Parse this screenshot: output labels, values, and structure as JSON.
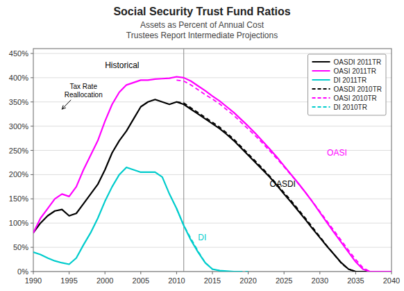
{
  "chart_data": {
    "type": "line",
    "title": "Social Security Trust Fund Ratios",
    "subtitle": [
      "Assets as Percent of Annual Cost",
      "Trustees Report Intermediate Projections"
    ],
    "xlim": [
      1990,
      2040
    ],
    "ylim": [
      0,
      460
    ],
    "xticks": [
      1990,
      1995,
      2000,
      2005,
      2010,
      2015,
      2020,
      2025,
      2030,
      2035,
      2040
    ],
    "yticks": [
      {
        "value": 0,
        "label": "0%"
      },
      {
        "value": 50,
        "label": "50%"
      },
      {
        "value": 100,
        "label": "100%"
      },
      {
        "value": 150,
        "label": "150%"
      },
      {
        "value": 200,
        "label": "200%"
      },
      {
        "value": 250,
        "label": "250%"
      },
      {
        "value": 300,
        "label": "300%"
      },
      {
        "value": 350,
        "label": "350%"
      },
      {
        "value": 400,
        "label": "400%"
      },
      {
        "value": 450,
        "label": "450%"
      }
    ],
    "grid": "y",
    "legend": "upper right",
    "vline_x": 2011,
    "annotations": [
      {
        "text": "Historical",
        "x": 2000,
        "y": 420,
        "color": "#000000"
      },
      {
        "text": "Tax Rate\nReallocation",
        "x": 1997,
        "y": 360,
        "arrow_x": 1994,
        "arrow_y": 335,
        "color": "#000000"
      },
      {
        "text": "OASDI",
        "x": 2023,
        "y": 175,
        "color": "#000000"
      },
      {
        "text": "OASI",
        "x": 2031,
        "y": 240,
        "color": "#FF00FF"
      },
      {
        "text": "DI",
        "x": 2013,
        "y": 65,
        "color": "#00CCCC"
      }
    ],
    "series": [
      {
        "name": "OASDI 2011TR",
        "color": "#000000",
        "line_style": "solid",
        "x": [
          1990,
          1991,
          1992,
          1993,
          1994,
          1995,
          1996,
          1997,
          1998,
          1999,
          2000,
          2001,
          2002,
          2003,
          2004,
          2005,
          2006,
          2007,
          2008,
          2009,
          2010,
          2011,
          2012,
          2013,
          2014,
          2015,
          2016,
          2017,
          2018,
          2019,
          2020,
          2021,
          2022,
          2023,
          2024,
          2025,
          2026,
          2027,
          2028,
          2029,
          2030,
          2031,
          2032,
          2033,
          2034,
          2035,
          2036,
          2037,
          2038,
          2039,
          2040
        ],
        "values": [
          80,
          100,
          115,
          125,
          128,
          115,
          120,
          140,
          160,
          180,
          210,
          245,
          270,
          290,
          315,
          340,
          350,
          355,
          350,
          345,
          350,
          345,
          335,
          325,
          315,
          305,
          295,
          283,
          270,
          255,
          240,
          225,
          210,
          195,
          178,
          160,
          143,
          125,
          107,
          88,
          70,
          52,
          35,
          18,
          5,
          0,
          0,
          0,
          0,
          0,
          0
        ]
      },
      {
        "name": "OASI 2011TR",
        "color": "#FF00FF",
        "line_style": "solid",
        "x": [
          1990,
          1991,
          1992,
          1993,
          1994,
          1995,
          1996,
          1997,
          1998,
          1999,
          2000,
          2001,
          2002,
          2003,
          2004,
          2005,
          2006,
          2007,
          2008,
          2009,
          2010,
          2011,
          2012,
          2013,
          2014,
          2015,
          2016,
          2017,
          2018,
          2019,
          2020,
          2021,
          2022,
          2023,
          2024,
          2025,
          2026,
          2027,
          2028,
          2029,
          2030,
          2031,
          2032,
          2033,
          2034,
          2035,
          2036,
          2037,
          2038,
          2039,
          2040
        ],
        "values": [
          80,
          110,
          130,
          150,
          160,
          155,
          175,
          210,
          240,
          270,
          310,
          345,
          370,
          385,
          390,
          395,
          395,
          397,
          398,
          399,
          402,
          400,
          393,
          383,
          373,
          362,
          352,
          340,
          328,
          314,
          300,
          285,
          269,
          253,
          236,
          218,
          200,
          182,
          163,
          143,
          122,
          101,
          80,
          60,
          40,
          20,
          5,
          0,
          0,
          0,
          0
        ]
      },
      {
        "name": "DI 2011TR",
        "color": "#00CCCC",
        "line_style": "solid",
        "x": [
          1990,
          1991,
          1992,
          1993,
          1994,
          1995,
          1996,
          1997,
          1998,
          1999,
          2000,
          2001,
          2002,
          2003,
          2004,
          2005,
          2006,
          2007,
          2008,
          2009,
          2010,
          2011,
          2012,
          2013,
          2014,
          2015,
          2016,
          2017,
          2018,
          2019
        ],
        "values": [
          40,
          35,
          28,
          22,
          18,
          15,
          28,
          55,
          80,
          110,
          145,
          175,
          200,
          215,
          210,
          205,
          205,
          205,
          195,
          160,
          130,
          95,
          65,
          40,
          18,
          5,
          2,
          1,
          0,
          0
        ]
      },
      {
        "name": "OASDI 2010TR",
        "color": "#000000",
        "line_style": "dashed",
        "x": [
          2010,
          2011,
          2012,
          2013,
          2014,
          2015,
          2016,
          2017,
          2018,
          2019,
          2020,
          2021,
          2022,
          2023,
          2024,
          2025,
          2026,
          2027,
          2028,
          2029,
          2030,
          2031,
          2032,
          2033,
          2034,
          2035,
          2036,
          2037,
          2038,
          2039,
          2040
        ],
        "values": [
          350,
          348,
          338,
          328,
          318,
          308,
          298,
          286,
          273,
          258,
          243,
          228,
          213,
          197,
          180,
          163,
          146,
          128,
          110,
          91,
          72,
          53,
          35,
          17,
          5,
          0,
          0,
          0,
          0,
          0,
          0
        ]
      },
      {
        "name": "OASI 2010TR",
        "color": "#FF00FF",
        "line_style": "dashed",
        "x": [
          2010,
          2011,
          2012,
          2013,
          2014,
          2015,
          2016,
          2017,
          2018,
          2019,
          2020,
          2021,
          2022,
          2023,
          2024,
          2025,
          2026,
          2027,
          2028,
          2029,
          2030,
          2031,
          2032,
          2033,
          2034,
          2035,
          2036,
          2037,
          2038,
          2039,
          2040
        ],
        "values": [
          395,
          393,
          385,
          375,
          365,
          356,
          346,
          334,
          322,
          308,
          294,
          280,
          265,
          249,
          233,
          216,
          199,
          181,
          163,
          144,
          124,
          104,
          84,
          64,
          44,
          25,
          8,
          0,
          0,
          0,
          0
        ]
      },
      {
        "name": "DI 2010TR",
        "color": "#00CCCC",
        "line_style": "dashed",
        "x": [
          2010,
          2011,
          2012,
          2013,
          2014,
          2015,
          2016,
          2017,
          2018,
          2019,
          2020
        ],
        "values": [
          130,
          95,
          68,
          42,
          18,
          5,
          2,
          0,
          0,
          0,
          0
        ]
      }
    ]
  }
}
